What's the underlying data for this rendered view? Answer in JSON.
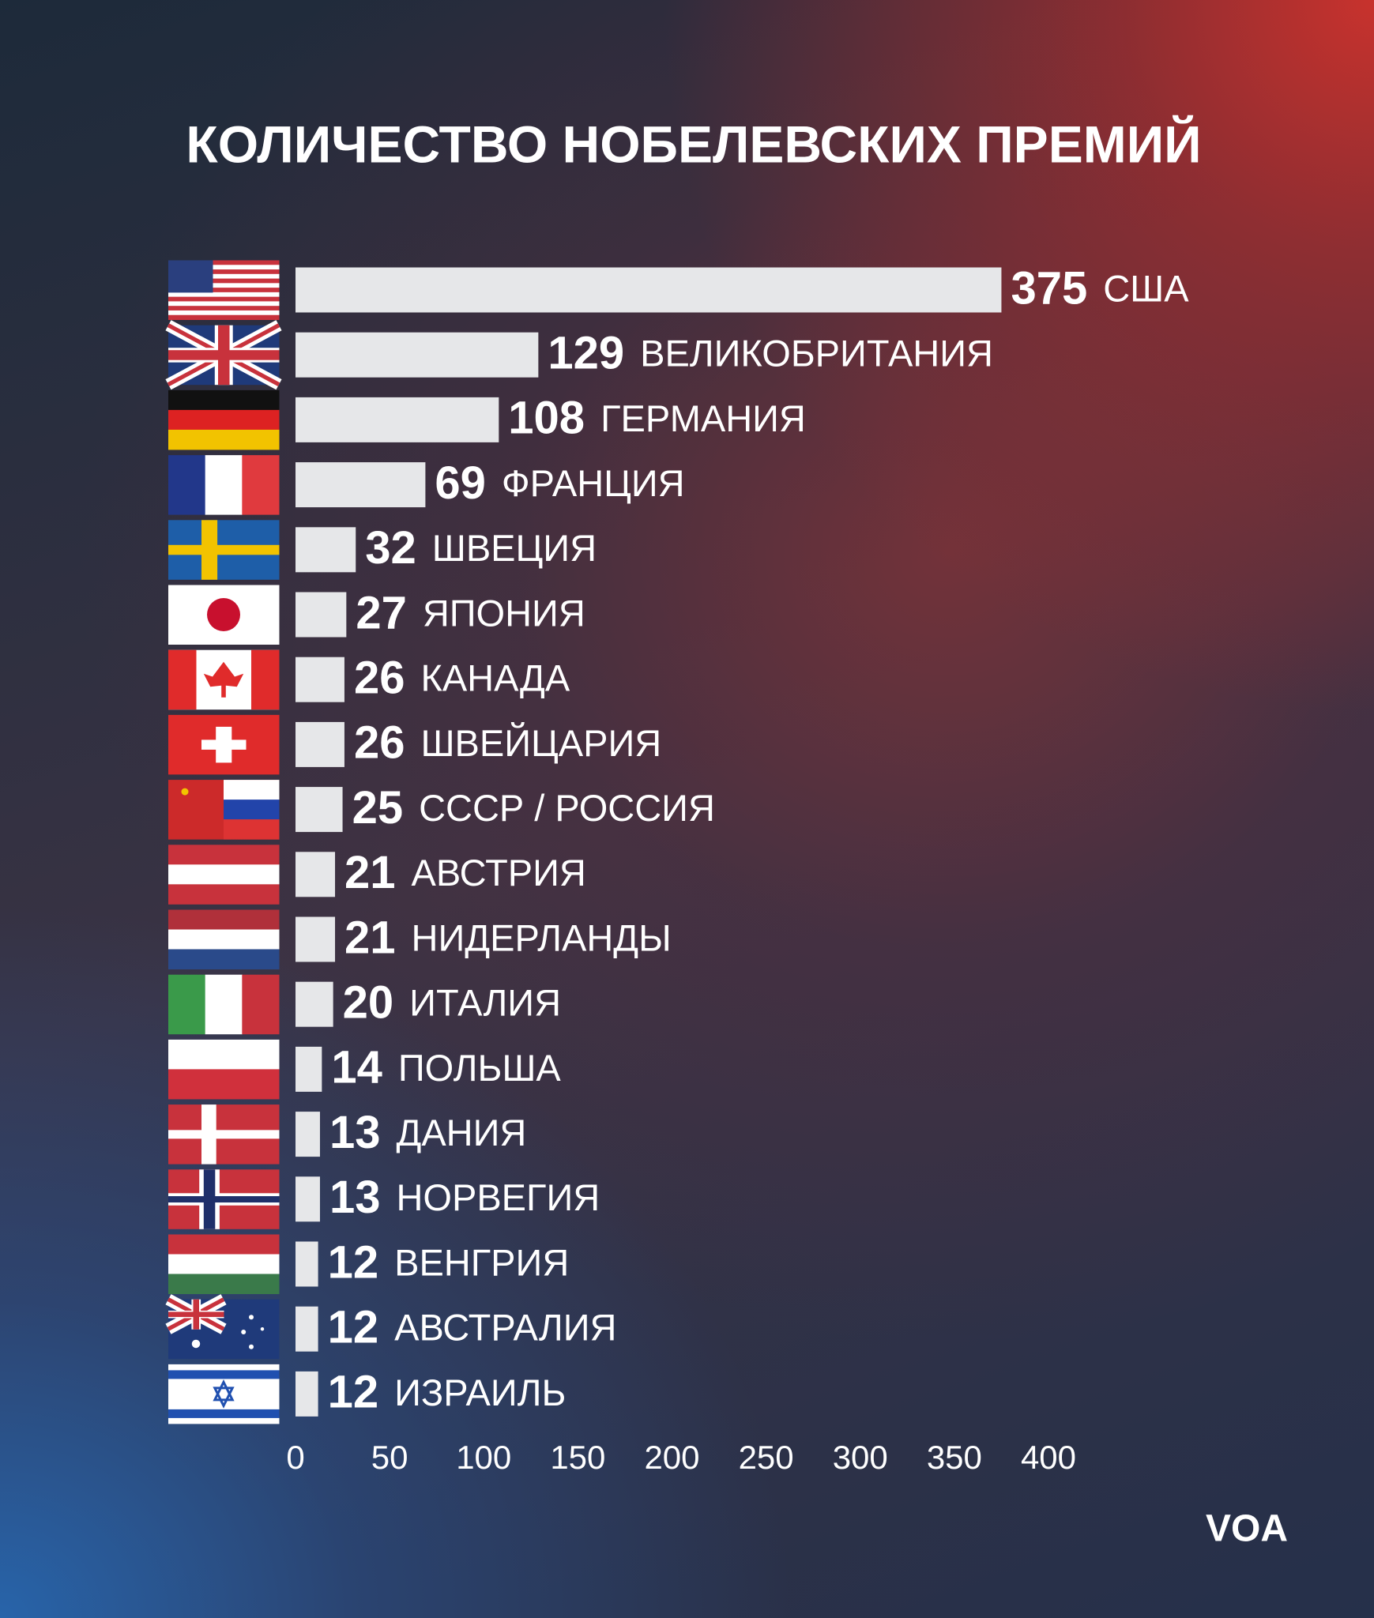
{
  "chart_data": {
    "type": "bar",
    "orientation": "horizontal",
    "title": "КОЛИЧЕСТВО НОБЕЛЕВСКИХ ПРЕМИЙ",
    "categories": [
      "США",
      "ВЕЛИКОБРИТАНИЯ",
      "ГЕРМАНИЯ",
      "ФРАНЦИЯ",
      "ШВЕЦИЯ",
      "ЯПОНИЯ",
      "КАНАДА",
      "ШВЕЙЦАРИЯ",
      "СССР / РОССИЯ",
      "АВСТРИЯ",
      "НИДЕРЛАНДЫ",
      "ИТАЛИЯ",
      "ПОЛЬША",
      "ДАНИЯ",
      "НОРВЕГИЯ",
      "ВЕНГРИЯ",
      "АВСТРАЛИЯ",
      "ИЗРАИЛЬ"
    ],
    "values": [
      375,
      129,
      108,
      69,
      32,
      27,
      26,
      26,
      25,
      21,
      21,
      20,
      14,
      13,
      13,
      12,
      12,
      12
    ],
    "color": "#e6e7e9",
    "xlim": [
      0,
      400
    ],
    "xticks": [
      0,
      50,
      100,
      150,
      200,
      250,
      300,
      350,
      400
    ],
    "grid": false,
    "logo": "VOA"
  }
}
